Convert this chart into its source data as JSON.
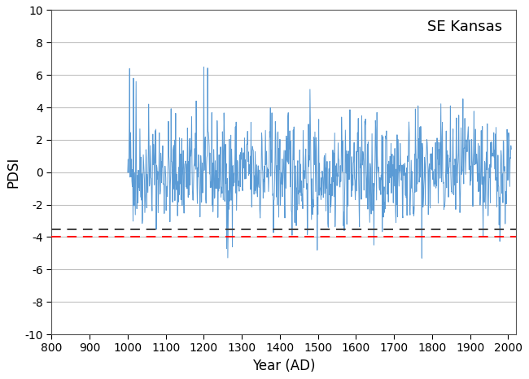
{
  "title": "",
  "xlabel": "Year (AD)",
  "ylabel": "PDSI",
  "label_text": "SE Kansas",
  "xlim": [
    800,
    2020
  ],
  "ylim": [
    -10,
    10
  ],
  "xticks": [
    800,
    900,
    1000,
    1100,
    1200,
    1300,
    1400,
    1500,
    1600,
    1700,
    1800,
    1900,
    2000
  ],
  "yticks": [
    -10,
    -8,
    -6,
    -4,
    -2,
    0,
    2,
    4,
    6,
    8,
    10
  ],
  "data_start_year": 1000,
  "data_end_year": 2008,
  "line_color": "#5B9BD5",
  "dashed_black_y": -3.5,
  "dashed_red_y": -4.0,
  "dashed_black_color": "#404040",
  "dashed_red_color": "#FF0000",
  "background_color": "#FFFFFF",
  "grid_color": "#C0C0C0",
  "label_fontsize": 12,
  "tick_fontsize": 10,
  "annotation_fontsize": 13,
  "line_width": 0.7,
  "seed": 42
}
